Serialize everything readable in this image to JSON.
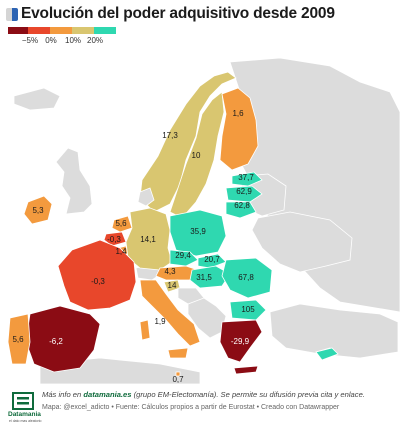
{
  "title": "Evolución del poder adquisitivo desde 2009",
  "title_icon": "eu-flag-icon",
  "legend": {
    "colors": [
      "#8b0c14",
      "#e8472b",
      "#f39a3e",
      "#d9c670",
      "#2fd8b0"
    ],
    "ticks": [
      "−5%",
      "0%",
      "10%",
      "20%"
    ]
  },
  "colors": {
    "no_data": "#dcdcdc",
    "water": "#ffffff",
    "brand": "#0f6b3c"
  },
  "regions": [
    {
      "name": "Noruega",
      "value": "17,3"
    },
    {
      "name": "Finlandia",
      "value": "1,6"
    },
    {
      "name": "Suecia",
      "value": "10"
    },
    {
      "name": "Estonia",
      "value": "37,7"
    },
    {
      "name": "Letonia",
      "value": "62,9"
    },
    {
      "name": "Lituania",
      "value": "62,8"
    },
    {
      "name": "Irlanda",
      "value": "5,3"
    },
    {
      "name": "Países Bajos",
      "value": "5,6"
    },
    {
      "name": "Bélgica",
      "value": "-0,3"
    },
    {
      "name": "Luxemburgo",
      "value": "1,4"
    },
    {
      "name": "Alemania",
      "value": "14,1"
    },
    {
      "name": "Polonia",
      "value": "35,9"
    },
    {
      "name": "Chequia",
      "value": "29,4"
    },
    {
      "name": "Eslovaquia",
      "value": "20,7"
    },
    {
      "name": "Francia",
      "value": "-0,3"
    },
    {
      "name": "Austria",
      "value": "4,3"
    },
    {
      "name": "Hungría",
      "value": "31,5"
    },
    {
      "name": "Rumanía",
      "value": "67,8"
    },
    {
      "name": "Eslovenia",
      "value": "14"
    },
    {
      "name": "Bulgaria",
      "value": "105"
    },
    {
      "name": "Italia",
      "value": "1,9"
    },
    {
      "name": "España",
      "value": "-6,2"
    },
    {
      "name": "Portugal",
      "value": "5,6"
    },
    {
      "name": "Grecia",
      "value": "-29,9"
    },
    {
      "name": "Malta",
      "value": "0,7"
    }
  ],
  "footer": {
    "line1_prefix": "Más info en ",
    "line1_link": "datamania.es",
    "line1_suffix": " (grupo EM-Electomanía). Se permite su difusión previa cita y enlace.",
    "line2": "Mapa: @excel_adicto • Fuente: Cálculos propios a partir de Eurostat • Creado con Datawrapper",
    "logo_word": "Datamania",
    "logo_sub": "el dato mas aleatorio"
  }
}
